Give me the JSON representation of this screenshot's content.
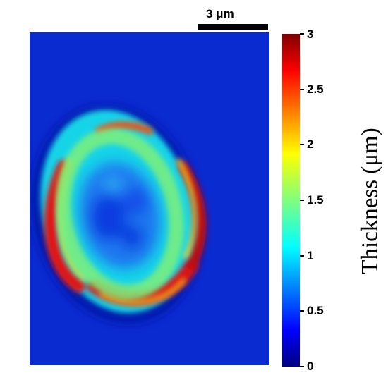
{
  "scale_bar": {
    "label": "3 μm"
  },
  "colorbar": {
    "title": "Thickness (μm)",
    "min": 0,
    "max": 3,
    "ticks": [
      "0",
      "0.5",
      "1",
      "1.5",
      "2",
      "2.5",
      "3"
    ],
    "colormap": "jet"
  },
  "image": {
    "subject": "cell-thickness-map",
    "background_color": "#0a2bd0"
  }
}
